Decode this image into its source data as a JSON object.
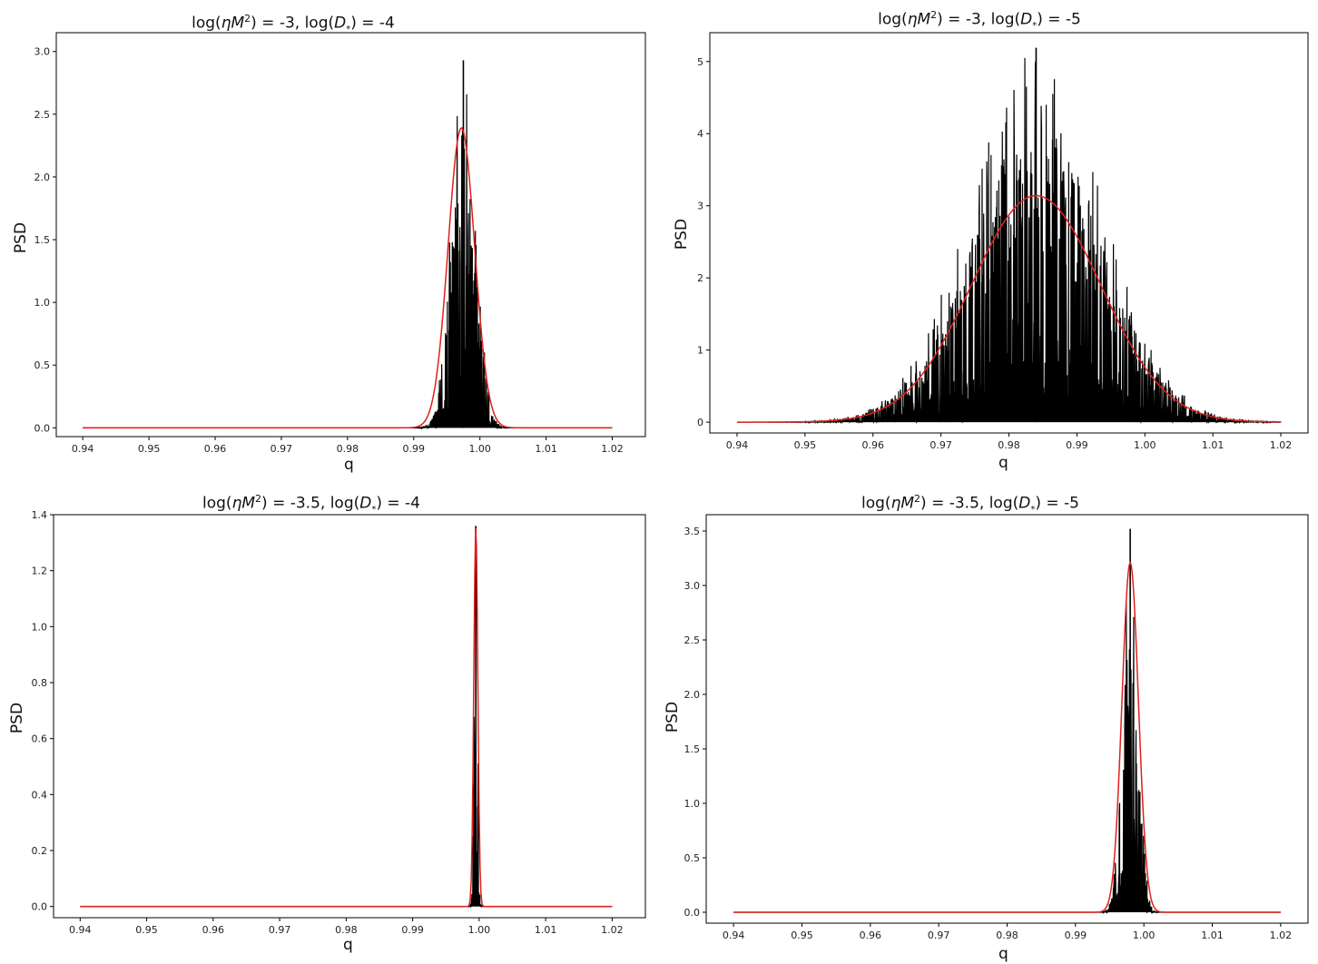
{
  "chart_data": [
    {
      "type": "line",
      "title": "log(ηM²) = -3,  log(D*) = -4",
      "title_parts": {
        "a": "log(",
        "b": "η",
        "c": "M",
        "d": "2",
        "e": ") = -3,  log(",
        "f": "D",
        "g": "*",
        "h": ") = -4"
      },
      "xlabel": "q",
      "ylabel": "PSD",
      "xlim": [
        0.936,
        1.025
      ],
      "ylim": [
        -0.07,
        3.15
      ],
      "xticks": [
        "0.94",
        "0.95",
        "0.96",
        "0.97",
        "0.98",
        "0.99",
        "1.00",
        "1.01",
        "1.02"
      ],
      "yticks": [
        "0.0",
        "0.5",
        "1.0",
        "1.5",
        "2.0",
        "2.5",
        "3.0"
      ],
      "series": [
        {
          "color": "#000000",
          "kind": "noisy-histogram",
          "center": 0.9975,
          "width": 0.0018,
          "peak": 2.93,
          "max_value": 2.93,
          "x_range": [
            0.94,
            1.02
          ]
        },
        {
          "color": "#e0201c",
          "kind": "smooth-fit",
          "center": 0.9972,
          "width": 0.002,
          "peak": 2.39,
          "max_value": 2.39,
          "x_range": [
            0.94,
            1.02
          ]
        }
      ]
    },
    {
      "type": "line",
      "title": "log(ηM²) = -3,  log(D*) = -5",
      "title_parts": {
        "a": "log(",
        "b": "η",
        "c": "M",
        "d": "2",
        "e": ") = -3,  log(",
        "f": "D",
        "g": "*",
        "h": ") = -5"
      },
      "xlabel": "q",
      "ylabel": "PSD",
      "xlim": [
        0.936,
        1.024
      ],
      "ylim": [
        -0.15,
        5.4
      ],
      "xticks": [
        "0.94",
        "0.95",
        "0.96",
        "0.97",
        "0.98",
        "0.99",
        "1.00",
        "1.01",
        "1.02"
      ],
      "yticks": [
        "0",
        "1",
        "2",
        "3",
        "4",
        "5"
      ],
      "series": [
        {
          "color": "#000000",
          "kind": "noisy-histogram",
          "center": 0.984,
          "width": 0.0095,
          "peak": 5.19,
          "max_value": 5.19,
          "x_range": [
            0.94,
            1.02
          ]
        },
        {
          "color": "#e0201c",
          "kind": "smooth-fit",
          "center": 0.984,
          "width": 0.0095,
          "peak": 3.14,
          "max_value": 3.14,
          "x_range": [
            0.94,
            1.02
          ]
        }
      ]
    },
    {
      "type": "line",
      "title": "log(ηM²) = -3.5,  log(D*) = -4",
      "title_parts": {
        "a": "log(",
        "b": "η",
        "c": "M",
        "d": "2",
        "e": ") = -3.5,  log(",
        "f": "D",
        "g": "*",
        "h": ") = -4"
      },
      "xlabel": "q",
      "ylabel": "PSD",
      "xlim": [
        0.936,
        1.025
      ],
      "ylim": [
        -0.04,
        1.4
      ],
      "xticks": [
        "0.94",
        "0.95",
        "0.96",
        "0.97",
        "0.98",
        "0.99",
        "1.00",
        "1.01",
        "1.02"
      ],
      "yticks": [
        "0.0",
        "0.2",
        "0.4",
        "0.6",
        "0.8",
        "1.0",
        "1.2",
        "1.4"
      ],
      "series": [
        {
          "color": "#000000",
          "kind": "noisy-histogram",
          "center": 0.9995,
          "width": 0.00025,
          "peak": 1.36,
          "max_value": 1.36,
          "x_range": [
            0.94,
            1.02
          ]
        },
        {
          "color": "#e0201c",
          "kind": "smooth-fit",
          "center": 0.9995,
          "width": 0.0003,
          "peak": 1.36,
          "max_value": 1.36,
          "x_range": [
            0.94,
            1.02
          ]
        }
      ]
    },
    {
      "type": "line",
      "title": "log(ηM²) = -3.5,  log(D*) = -5",
      "title_parts": {
        "a": "log(",
        "b": "η",
        "c": "M",
        "d": "2",
        "e": ") = -3.5,  log(",
        "f": "D",
        "g": "*",
        "h": ") = -5"
      },
      "xlabel": "q",
      "ylabel": "PSD",
      "xlim": [
        0.936,
        1.024
      ],
      "ylim": [
        -0.1,
        3.65
      ],
      "xticks": [
        "0.94",
        "0.95",
        "0.96",
        "0.97",
        "0.98",
        "0.99",
        "1.00",
        "1.01",
        "1.02"
      ],
      "yticks": [
        "0.0",
        "0.5",
        "1.0",
        "1.5",
        "2.0",
        "2.5",
        "3.0",
        "3.5"
      ],
      "series": [
        {
          "color": "#000000",
          "kind": "noisy-histogram",
          "center": 0.998,
          "width": 0.0011,
          "peak": 3.52,
          "max_value": 3.52,
          "x_range": [
            0.94,
            1.02
          ]
        },
        {
          "color": "#e0201c",
          "kind": "smooth-fit",
          "center": 0.998,
          "width": 0.0012,
          "peak": 3.21,
          "max_value": 3.21,
          "x_range": [
            0.94,
            1.02
          ]
        }
      ]
    }
  ]
}
